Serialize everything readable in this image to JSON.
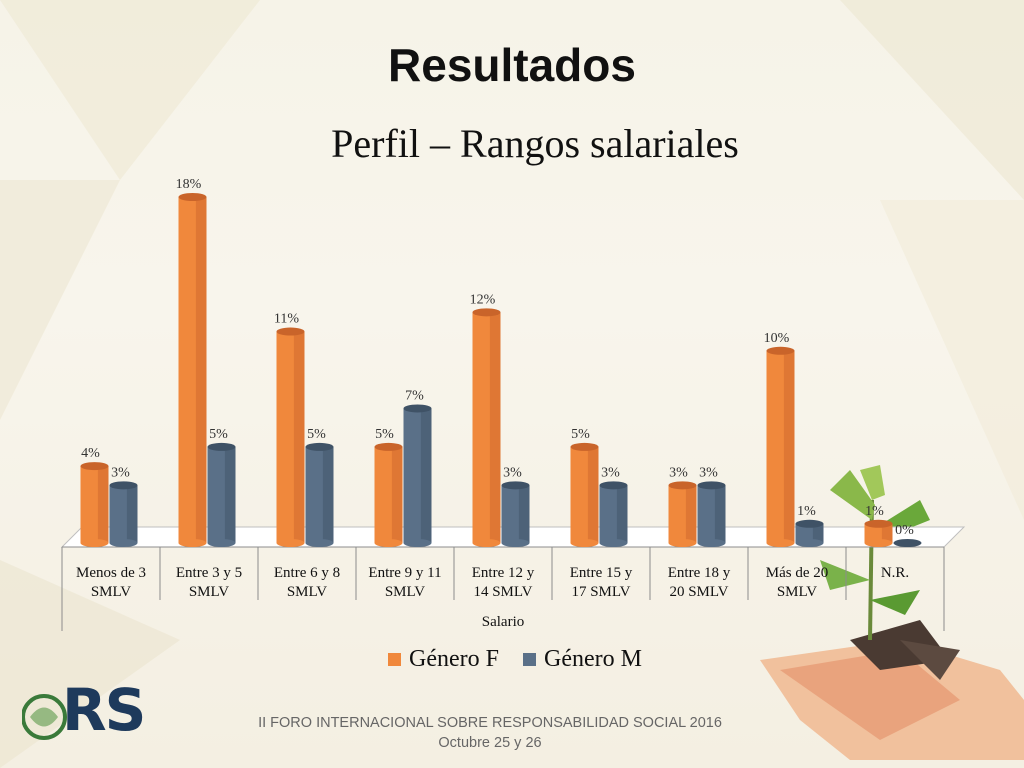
{
  "slide": {
    "title": "Resultados",
    "subtitle": "Perfil – Rangos salariales",
    "footer_line1": "II FORO INTERNACIONAL SOBRE RESPONSABILIDAD SOCIAL 2016",
    "footer_line2": "Octubre 25 y 26",
    "logo_text": "RS"
  },
  "colors": {
    "female": "#f0883c",
    "male": "#5a7088",
    "accent": "#1e3a5c"
  },
  "chart_data": {
    "type": "bar",
    "title": "",
    "xlabel": "Salario",
    "ylabel": "",
    "ylim": [
      0,
      20
    ],
    "categories": [
      [
        "Menos de 3",
        "SMLV"
      ],
      [
        "Entre 3 y 5",
        "SMLV"
      ],
      [
        "Entre 6 y 8",
        "SMLV"
      ],
      [
        "Entre 9 y 11",
        "SMLV"
      ],
      [
        "Entre 12 y",
        "14 SMLV"
      ],
      [
        "Entre 15 y",
        "17 SMLV"
      ],
      [
        "Entre 18 y",
        "20 SMLV"
      ],
      [
        "Más de 20",
        "SMLV"
      ],
      [
        "N.R.",
        ""
      ]
    ],
    "series": [
      {
        "name": "Género F",
        "values": [
          4,
          18,
          11,
          5,
          12,
          5,
          3,
          10,
          1
        ],
        "labels": [
          "4%",
          "18%",
          "11%",
          "5%",
          "12%",
          "5%",
          "3%",
          "10%",
          "1%"
        ]
      },
      {
        "name": "Género M",
        "values": [
          3,
          5,
          5,
          7,
          3,
          3,
          3,
          1,
          0
        ],
        "labels": [
          "3%",
          "5%",
          "5%",
          "7%",
          "3%",
          "3%",
          "3%",
          "1%",
          "0%"
        ]
      }
    ],
    "legend": "bottom",
    "grid": false
  }
}
